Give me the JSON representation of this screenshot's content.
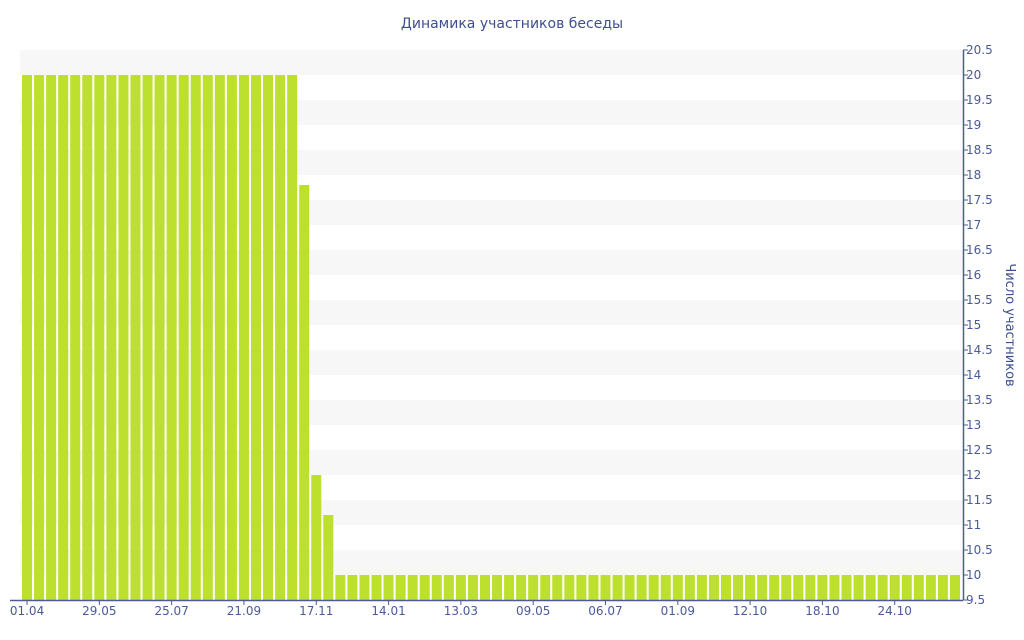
{
  "chart_data": {
    "type": "bar",
    "title": "Динамика участников беседы",
    "xlabel": "",
    "ylabel": "Число участников",
    "ylim": [
      9.5,
      20.5
    ],
    "y_ticks": [
      "9.5",
      "10",
      "10.5",
      "11",
      "11.5",
      "12",
      "12.5",
      "13",
      "13.5",
      "14",
      "14.5",
      "15",
      "15.5",
      "16",
      "16.5",
      "17",
      "17.5",
      "18",
      "18.5",
      "19",
      "19.5",
      "20",
      "20.5"
    ],
    "x_tick_labels": [
      {
        "index": 0,
        "label": "01.04"
      },
      {
        "index": 6,
        "label": "29.05"
      },
      {
        "index": 12,
        "label": "25.07"
      },
      {
        "index": 18,
        "label": "21.09"
      },
      {
        "index": 24,
        "label": "17.11"
      },
      {
        "index": 30,
        "label": "14.01"
      },
      {
        "index": 36,
        "label": "13.03"
      },
      {
        "index": 42,
        "label": "09.05"
      },
      {
        "index": 48,
        "label": "06.07"
      },
      {
        "index": 54,
        "label": "01.09"
      },
      {
        "index": 60,
        "label": "12.10"
      },
      {
        "index": 66,
        "label": "18.10"
      },
      {
        "index": 72,
        "label": "24.10"
      }
    ],
    "values": [
      20,
      20,
      20,
      20,
      20,
      20,
      20,
      20,
      20,
      20,
      20,
      20,
      20,
      20,
      20,
      20,
      20,
      20,
      20,
      20,
      20,
      20,
      20,
      17.8,
      12,
      11.2,
      10,
      10,
      10,
      10,
      10,
      10,
      10,
      10,
      10,
      10,
      10,
      10,
      10,
      10,
      10,
      10,
      10,
      10,
      10,
      10,
      10,
      10,
      10,
      10,
      10,
      10,
      10,
      10,
      10,
      10,
      10,
      10,
      10,
      10,
      10,
      10,
      10,
      10,
      10,
      10,
      10,
      10,
      10,
      10,
      10,
      10,
      10,
      10,
      10,
      10,
      10,
      10
    ],
    "y_axis_position": "right",
    "grid": "alternating bands",
    "colors": {
      "bar": "#bde02f",
      "axis": "#4a5a9a",
      "band": "#f7f7f7",
      "title": "#3d4f8f"
    }
  }
}
